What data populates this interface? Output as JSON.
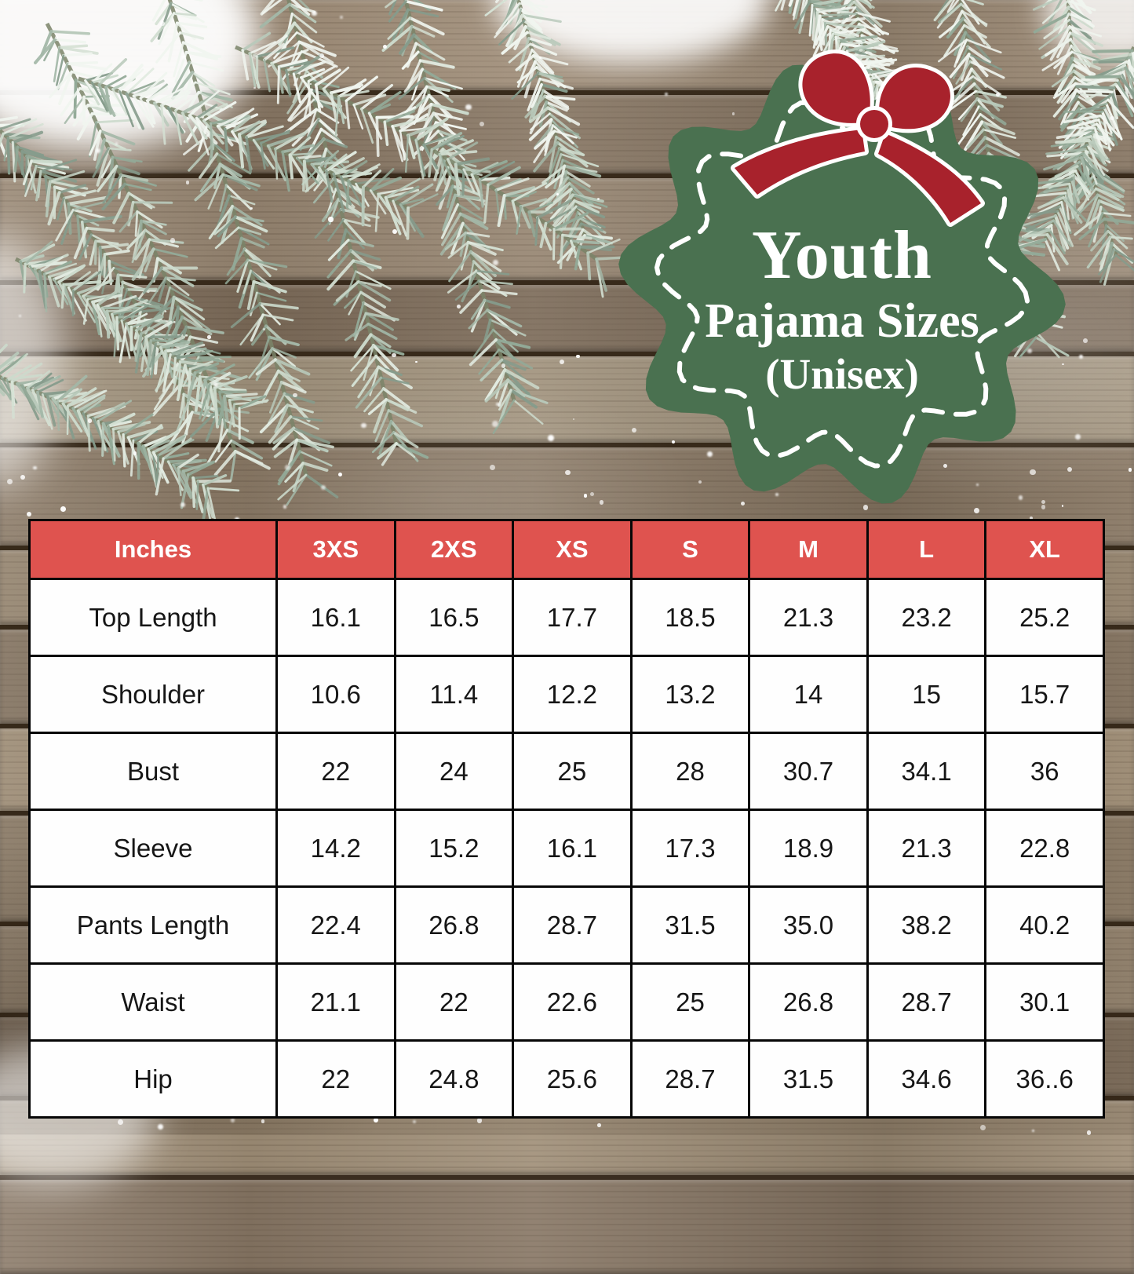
{
  "badge": {
    "title": "Youth",
    "subtitle": "Pajama Sizes",
    "note": "(Unisex)",
    "background_color": "#4a7150",
    "bow_color": "#a8222c"
  },
  "icons": {
    "bow": "ribbon-bow-icon",
    "branches": "pine-branch-icon",
    "snow": "snow-drift"
  },
  "chart_data": {
    "type": "table",
    "title": "Youth Pajama Sizes (Unisex)",
    "unit": "Inches",
    "header_row": [
      "Inches",
      "3XS",
      "2XS",
      "XS",
      "S",
      "M",
      "L",
      "XL"
    ],
    "rows": [
      {
        "label": "Top Length",
        "values": [
          "16.1",
          "16.5",
          "17.7",
          "18.5",
          "21.3",
          "23.2",
          "25.2"
        ]
      },
      {
        "label": "Shoulder",
        "values": [
          "10.6",
          "11.4",
          "12.2",
          "13.2",
          "14",
          "15",
          "15.7"
        ]
      },
      {
        "label": "Bust",
        "values": [
          "22",
          "24",
          "25",
          "28",
          "30.7",
          "34.1",
          "36"
        ]
      },
      {
        "label": "Sleeve",
        "values": [
          "14.2",
          "15.2",
          "16.1",
          "17.3",
          "18.9",
          "21.3",
          "22.8"
        ]
      },
      {
        "label": "Pants Length",
        "values": [
          "22.4",
          "26.8",
          "28.7",
          "31.5",
          "35.0",
          "38.2",
          "40.2"
        ]
      },
      {
        "label": "Waist",
        "values": [
          "21.1",
          "22",
          "22.6",
          "25",
          "26.8",
          "28.7",
          "30.1"
        ]
      },
      {
        "label": "Hip",
        "values": [
          "22",
          "24.8",
          "25.6",
          "28.7",
          "31.5",
          "34.6",
          "36..6"
        ]
      }
    ],
    "header_color": "#df534f",
    "cell_background": "#ffffff",
    "border_color": "#070707",
    "text_color": "#161616"
  }
}
